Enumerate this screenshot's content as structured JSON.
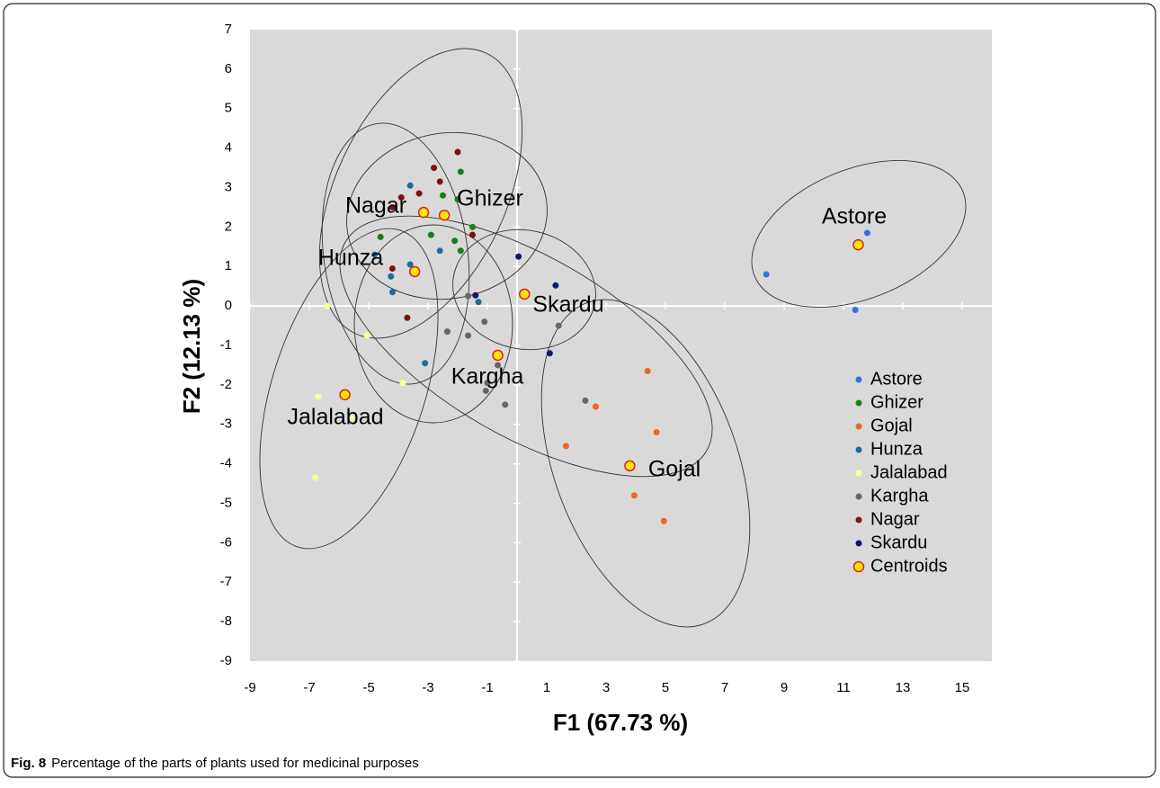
{
  "chart_data": {
    "type": "scatter",
    "xlabel": "F1 (67.73 %)",
    "ylabel": "F2 (12.13 %)",
    "caption": {
      "label": "Fig. 8",
      "text": "Percentage of the parts of plants used for medicinal purposes"
    },
    "xlim": [
      -9,
      16
    ],
    "ylim": [
      -9,
      7
    ],
    "xticks": [
      -9,
      -7,
      -5,
      -3,
      -1,
      1,
      3,
      5,
      7,
      9,
      11,
      13,
      15
    ],
    "yticks": [
      -9,
      -8,
      -7,
      -6,
      -5,
      -4,
      -3,
      -2,
      -1,
      0,
      1,
      2,
      3,
      4,
      5,
      6,
      7
    ],
    "legend": "lower right",
    "annotations": [
      "Astore",
      "Ghizer",
      "Nagar",
      "Hunza",
      "Skardu",
      "Kargha",
      "Jalalabad",
      "Gojal"
    ],
    "series": [
      {
        "name": "Astore",
        "color": "#3b6fe6",
        "x": [
          8.4,
          11.8,
          11.4
        ],
        "values": [
          0.8,
          1.85,
          -0.1
        ]
      },
      {
        "name": "Ghizer",
        "color": "#1b7d1b",
        "x": [
          -4.6,
          -2.9,
          -2.5,
          -2.0,
          -1.9,
          -1.5,
          -2.1,
          -1.9
        ],
        "values": [
          1.75,
          1.8,
          2.8,
          2.7,
          3.4,
          2.0,
          1.65,
          1.4
        ]
      },
      {
        "name": "Gojal",
        "color": "#f26522",
        "x": [
          4.4,
          2.65,
          4.7,
          1.65,
          3.95,
          4.95
        ],
        "values": [
          -1.65,
          -2.55,
          -3.2,
          -3.55,
          -4.8,
          -5.45
        ]
      },
      {
        "name": "Hunza",
        "color": "#1f6b9c",
        "x": [
          -3.6,
          -2.6,
          -4.8,
          -4.25,
          -3.6,
          -4.2,
          -1.3,
          -3.1
        ],
        "values": [
          3.05,
          1.4,
          1.3,
          0.75,
          1.05,
          0.35,
          0.1,
          -1.45
        ]
      },
      {
        "name": "Jalalabad",
        "color": "#ffff99",
        "x": [
          -6.4,
          -5.05,
          -3.85,
          -5.8,
          -6.7,
          -5.6,
          -6.8
        ],
        "values": [
          0,
          -0.75,
          -1.95,
          -2.25,
          -2.3,
          -2.85,
          -4.35
        ]
      },
      {
        "name": "Kargha",
        "color": "#666666",
        "x": [
          -1.65,
          -1.1,
          -1.65,
          -2.35,
          -0.65,
          -1.0,
          -1.05,
          -0.4,
          2.3,
          1.4
        ],
        "values": [
          0.25,
          -0.4,
          -0.75,
          -0.65,
          -1.5,
          -1.95,
          -2.15,
          -2.5,
          -2.4,
          -0.5
        ]
      },
      {
        "name": "Nagar",
        "color": "#7a1212",
        "x": [
          -2.8,
          -2.0,
          -3.3,
          -2.6,
          -3.9,
          -4.2,
          -1.5,
          -4.2,
          -3.7
        ],
        "values": [
          3.5,
          3.9,
          2.85,
          3.15,
          2.75,
          2.5,
          1.8,
          0.95,
          -0.3
        ]
      },
      {
        "name": "Skardu",
        "color": "#0b1a70",
        "x": [
          0.05,
          -1.4,
          1.3,
          1.1
        ],
        "values": [
          1.25,
          0.27,
          0.52,
          -1.2
        ]
      },
      {
        "name": "Centroids",
        "color": "#ffe600",
        "edgecolor": "#e02020",
        "x": [
          11.5,
          -2.45,
          3.8,
          -3.45,
          -5.8,
          -0.65,
          -3.15,
          0.25
        ],
        "values": [
          1.55,
          2.3,
          -4.05,
          0.87,
          -2.25,
          -1.25,
          2.37,
          0.3
        ]
      }
    ]
  }
}
